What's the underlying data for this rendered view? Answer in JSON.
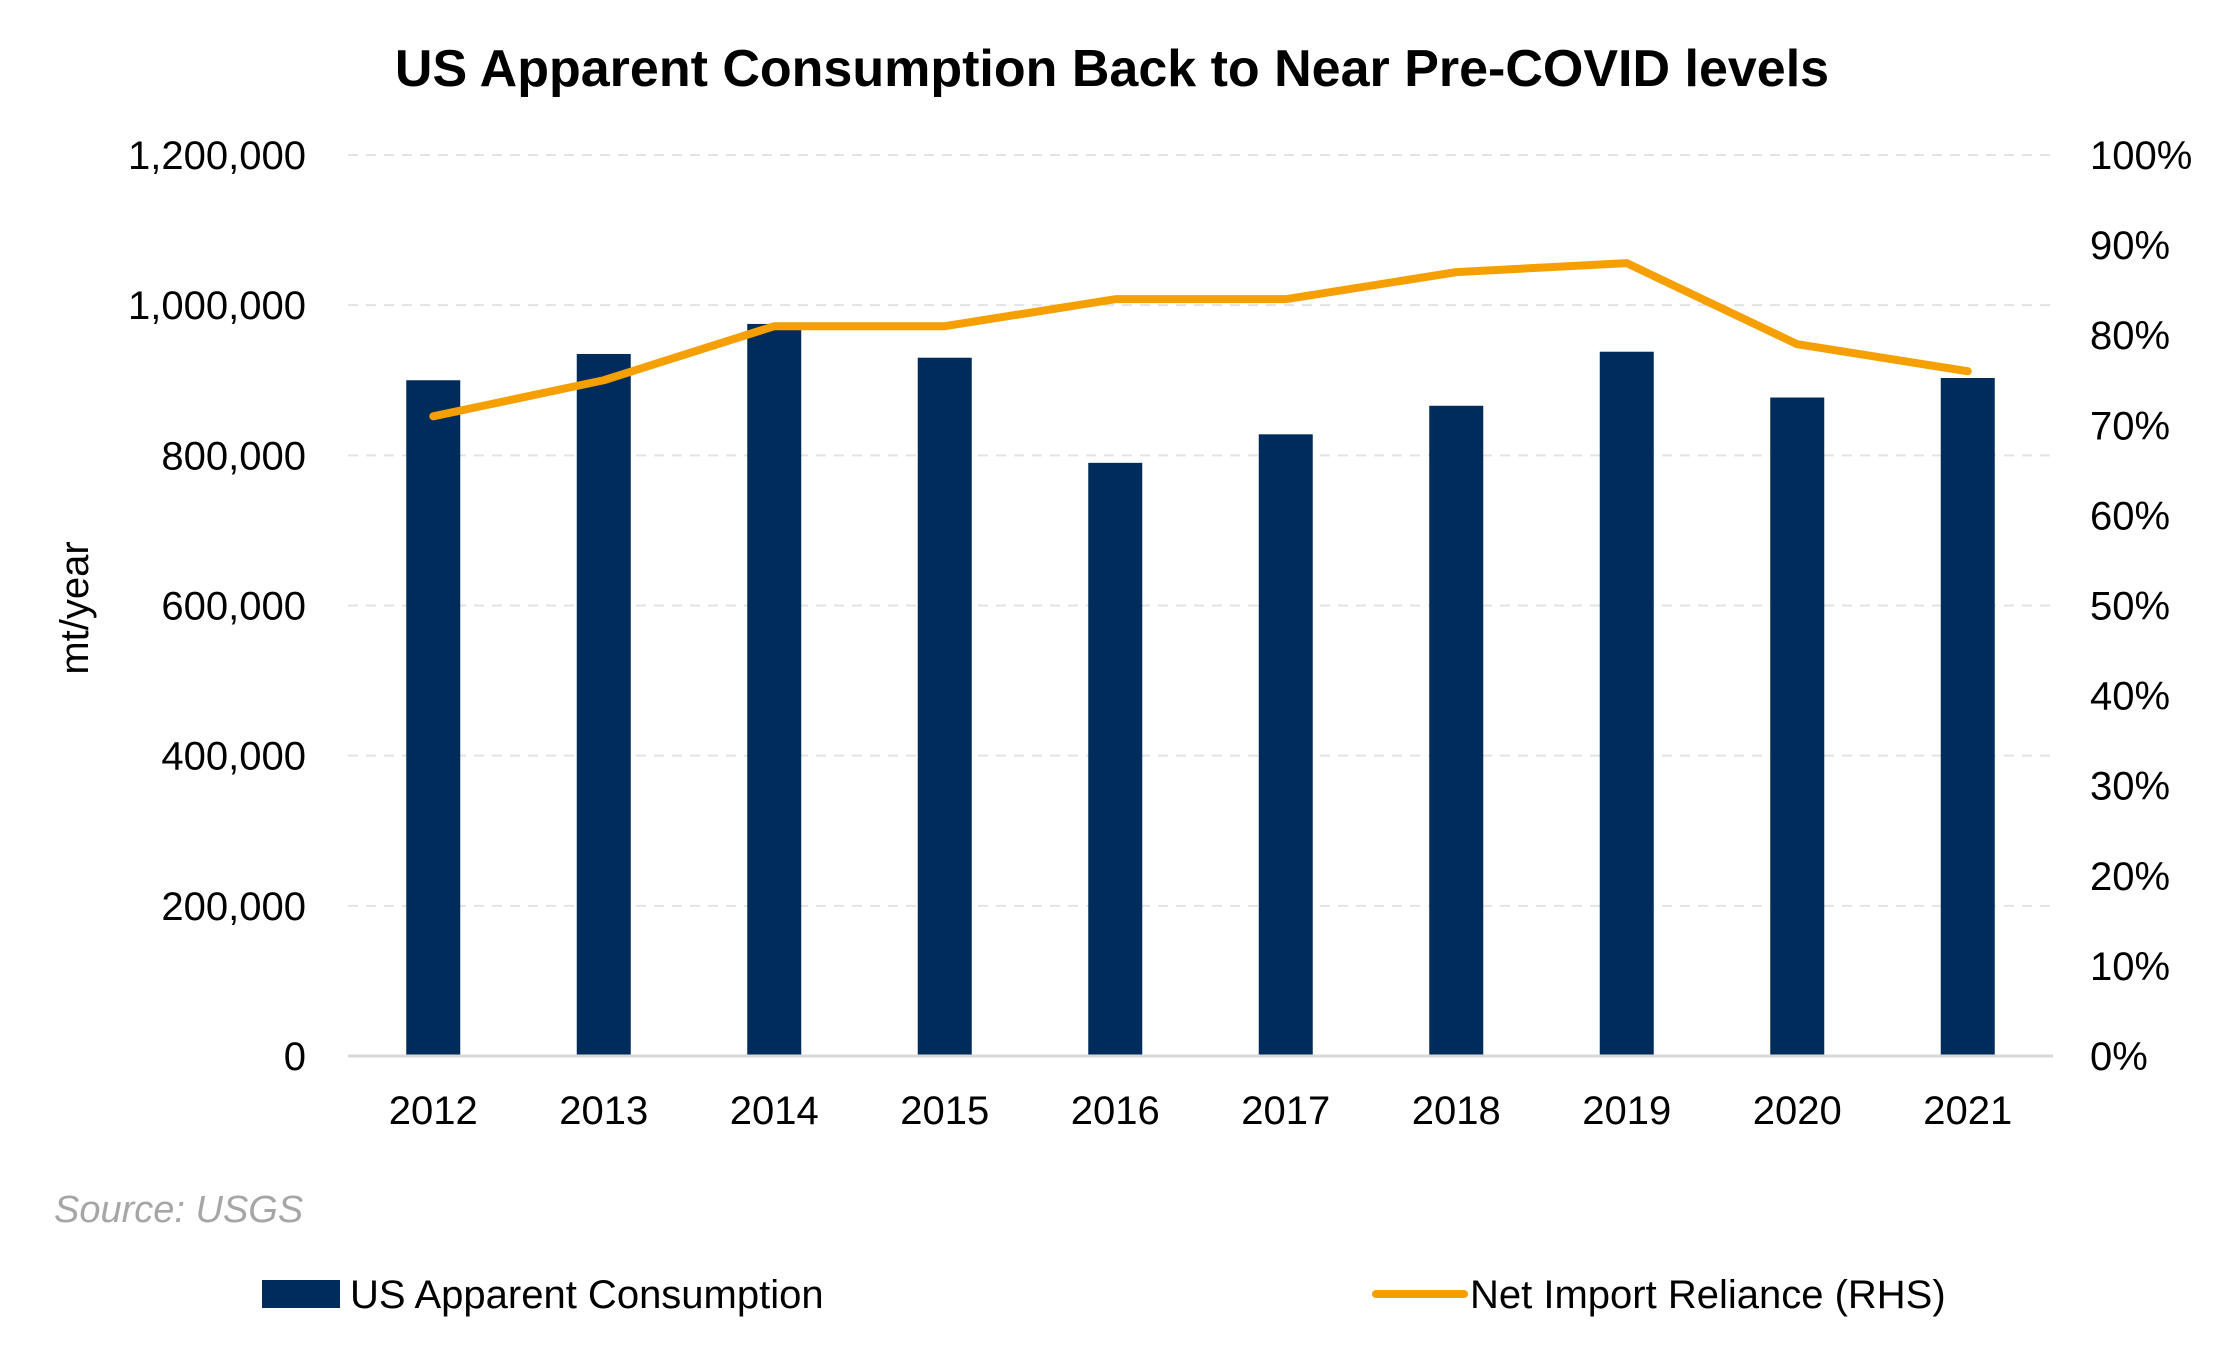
{
  "chart_data": {
    "type": "bar",
    "title": "US Apparent Consumption Back to Near Pre-COVID levels",
    "ylabel": "mt/year",
    "y2label": "",
    "categories": [
      "2012",
      "2013",
      "2014",
      "2015",
      "2016",
      "2017",
      "2018",
      "2019",
      "2020",
      "2021"
    ],
    "ylim": [
      0,
      1200000
    ],
    "y_ticks": [
      "0",
      "200,000",
      "400,000",
      "600,000",
      "800,000",
      "1,000,000",
      "1,200,000"
    ],
    "y2lim": [
      0,
      100
    ],
    "y2_ticks": [
      "0%",
      "10%",
      "20%",
      "30%",
      "40%",
      "50%",
      "60%",
      "70%",
      "80%",
      "90%",
      "100%"
    ],
    "grid": true,
    "legend_position": "bottom",
    "series": [
      {
        "name": "US Apparent Consumption",
        "type": "bar",
        "axis": "left",
        "color": "#002c5c",
        "values": [
          900000,
          935000,
          975000,
          930000,
          790000,
          828000,
          866000,
          938000,
          877000,
          903000
        ]
      },
      {
        "name": "Net Import Reliance (RHS)",
        "type": "line",
        "axis": "right",
        "color": "#f5a000",
        "values": [
          71,
          75,
          81,
          81,
          84,
          84,
          87,
          88,
          79,
          76
        ]
      }
    ],
    "annotations": [
      "Source: USGS"
    ]
  }
}
